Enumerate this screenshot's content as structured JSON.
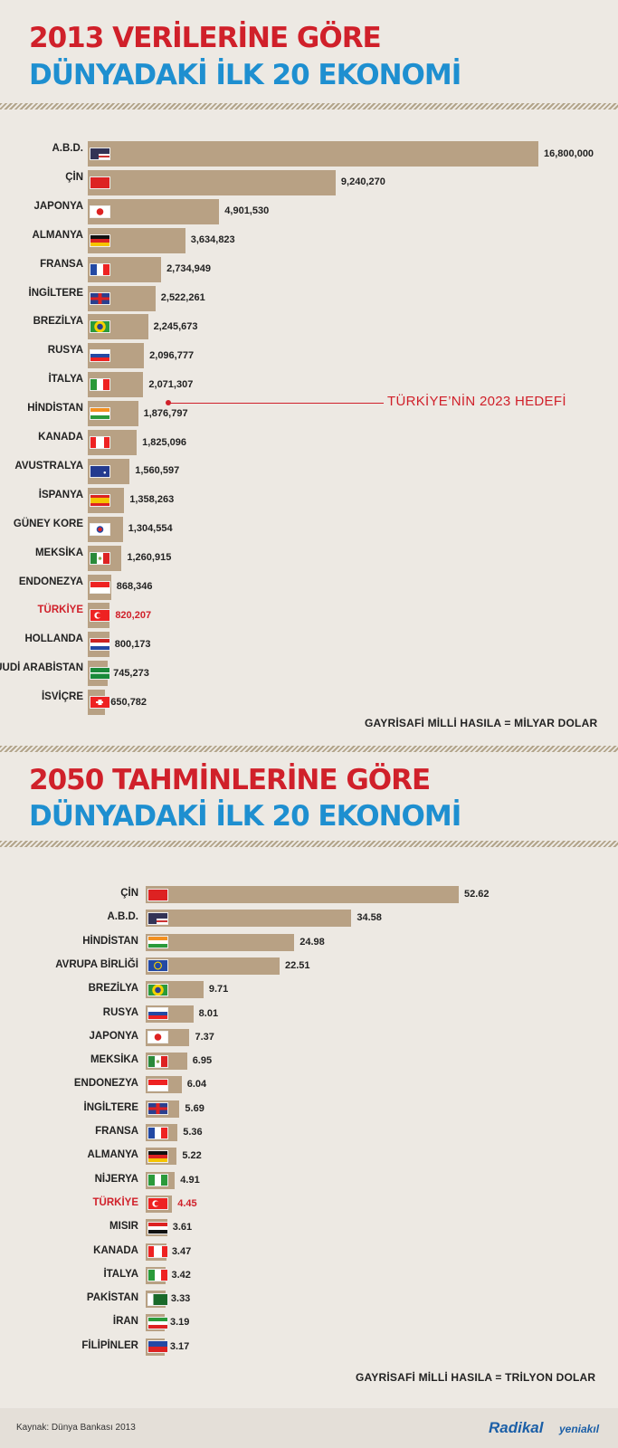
{
  "section1": {
    "title_line1": "2013 VERİLERİNE GÖRE",
    "title_line2": "DÜNYADAKİ İLK 20 EKONOMİ",
    "note": "GAYRİSAFİ MİLLİ HASILA = MİLYAR DOLAR",
    "annotation": "TÜRKİYE’NİN 2023 HEDEFİ"
  },
  "section2": {
    "title_line1": "2050 TAHMİNLERİNE GÖRE",
    "title_line2": "DÜNYADAKİ İLK 20 EKONOMİ",
    "note": "GAYRİSAFİ MİLLİ HASILA = TRİLYON DOLAR"
  },
  "footer": {
    "source": "Kaynak: Dünya Bankası 2013",
    "logo_main": "Radikal",
    "logo_sub": "yeniakıl"
  },
  "colors": {
    "bar": "#b8a184",
    "highlight": "#d0202a",
    "title_red": "#d0202a",
    "title_blue": "#1e8fd0"
  },
  "chart_data": [
    {
      "type": "bar",
      "orientation": "horizontal",
      "title": "2013 VERİLERİNE GÖRE DÜNYADAKİ İLK 20 EKONOMİ",
      "xlim": [
        0,
        16800000
      ],
      "highlight": "TÜRKİYE",
      "categories": [
        "A.B.D.",
        "ÇİN",
        "JAPONYA",
        "ALMANYA",
        "FRANSA",
        "İNGİLTERE",
        "BREZİLYA",
        "RUSYA",
        "İTALYA",
        "HİNDİSTAN",
        "KANADA",
        "AVUSTRALYA",
        "İSPANYA",
        "GÜNEY KORE",
        "MEKSİKA",
        "ENDONEZYA",
        "TÜRKİYE",
        "HOLLANDA",
        "SUUDİ ARABİSTAN",
        "İSVİÇRE"
      ],
      "flags": [
        "flag-usa-icon",
        "flag-china-icon",
        "flag-japan-icon",
        "flag-germany-icon",
        "flag-france-icon",
        "flag-uk-icon",
        "flag-brazil-icon",
        "flag-russia-icon",
        "flag-italy-icon",
        "flag-india-icon",
        "flag-canada-icon",
        "flag-australia-icon",
        "flag-spain-icon",
        "flag-south-korea-icon",
        "flag-mexico-icon",
        "flag-indonesia-icon",
        "flag-turkey-icon",
        "flag-netherlands-icon",
        "flag-saudi-arabia-icon",
        "flag-switzerland-icon"
      ],
      "values": [
        16800000,
        9240270,
        4901530,
        3634823,
        2734949,
        2522261,
        2245673,
        2096777,
        2071307,
        1876797,
        1825096,
        1560597,
        1358263,
        1304554,
        1260915,
        868346,
        820207,
        800173,
        745273,
        650782
      ],
      "labels": [
        "16,800,000",
        "9,240,270",
        "4,901,530",
        "3,634,823",
        "2,734,949",
        "2,522,261",
        "2,245,673",
        "2,096,777",
        "2,071,307",
        "1,876,797",
        "1,825,096",
        "1,560,597",
        "1,358,263",
        "1,304,554",
        "1,260,915",
        "868,346",
        "820,207",
        "800,173",
        "745,273",
        "650,782"
      ]
    },
    {
      "type": "bar",
      "orientation": "horizontal",
      "title": "2050 TAHMİNLERİNE GÖRE DÜNYADAKİ İLK 20 EKONOMİ",
      "xlim": [
        0,
        52.62
      ],
      "highlight": "TÜRKİYE",
      "categories": [
        "ÇİN",
        "A.B.D.",
        "HİNDİSTAN",
        "AVRUPA BİRLİĞİ",
        "BREZİLYA",
        "RUSYA",
        "JAPONYA",
        "MEKSİKA",
        "ENDONEZYA",
        "İNGİLTERE",
        "FRANSA",
        "ALMANYA",
        "NİJERYA",
        "TÜRKİYE",
        "MISIR",
        "KANADA",
        "İTALYA",
        "PAKİSTAN",
        "İRAN",
        "FİLİPİNLER"
      ],
      "flags": [
        "flag-china-icon",
        "flag-usa-icon",
        "flag-india-icon",
        "flag-eu-icon",
        "flag-brazil-icon",
        "flag-russia-icon",
        "flag-japan-icon",
        "flag-mexico-icon",
        "flag-indonesia-icon",
        "flag-uk-icon",
        "flag-france-icon",
        "flag-germany-icon",
        "flag-nigeria-icon",
        "flag-turkey-icon",
        "flag-egypt-icon",
        "flag-canada-icon",
        "flag-italy-icon",
        "flag-pakistan-icon",
        "flag-iran-icon",
        "flag-philippines-icon"
      ],
      "values": [
        52.62,
        34.58,
        24.98,
        22.51,
        9.71,
        8.01,
        7.37,
        6.95,
        6.04,
        5.69,
        5.36,
        5.22,
        4.91,
        4.45,
        3.61,
        3.47,
        3.42,
        3.33,
        3.19,
        3.17
      ],
      "labels": [
        "52.62",
        "34.58",
        "24.98",
        "22.51",
        "9.71",
        "8.01",
        "7.37",
        "6.95",
        "6.04",
        "5.69",
        "5.36",
        "5.22",
        "4.91",
        "4.45",
        "3.61",
        "3.47",
        "3.42",
        "3.33",
        "3.19",
        "3.17"
      ]
    }
  ]
}
